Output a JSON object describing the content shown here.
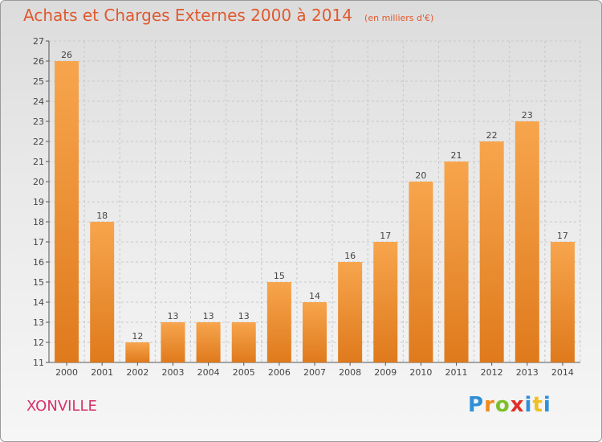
{
  "header": {
    "title": "Achats et Charges Externes 2000 à 2014",
    "subtitle": "(en milliers d'€)"
  },
  "footer": {
    "commune": "XONVILLE",
    "brand_letters": [
      "P",
      "r",
      "o",
      "x",
      "i",
      "t",
      "i"
    ],
    "brand_colors": [
      "#2f8fd8",
      "#f08a1c",
      "#7cbf2a",
      "#e0302a",
      "#2f8fd8",
      "#f0c020",
      "#2f8fd8"
    ]
  },
  "chart_data": {
    "type": "bar",
    "categories": [
      "2000",
      "2001",
      "2002",
      "2003",
      "2004",
      "2005",
      "2006",
      "2007",
      "2008",
      "2009",
      "2010",
      "2011",
      "2012",
      "2013",
      "2014"
    ],
    "values": [
      26,
      18,
      12,
      13,
      13,
      13,
      15,
      14,
      16,
      17,
      20,
      21,
      22,
      23,
      17
    ],
    "ylim": [
      11,
      27
    ],
    "yticks": [
      11,
      12,
      13,
      14,
      15,
      16,
      17,
      18,
      19,
      20,
      21,
      22,
      23,
      24,
      25,
      26,
      27
    ],
    "grid": true,
    "data_labels": true,
    "colors": {
      "bar_light": "#f7a54d",
      "bar_dark": "#df7a1c",
      "grid": "#c8c8c8",
      "text": "#444444"
    }
  }
}
